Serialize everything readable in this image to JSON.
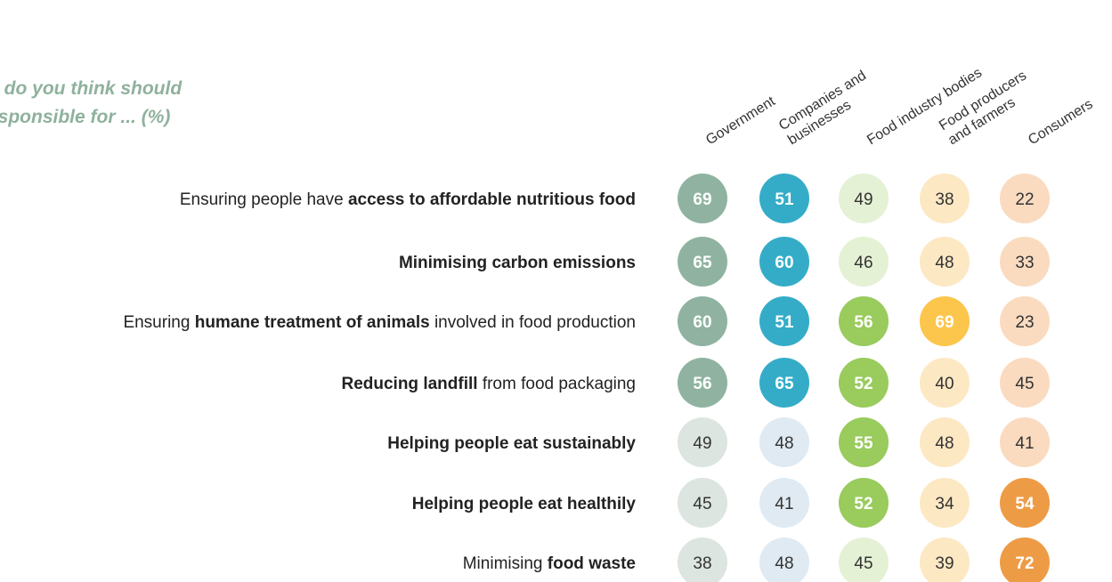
{
  "title": {
    "line1": "o do you think should",
    "line2": "esponsible for ... (%)"
  },
  "columns": [
    {
      "lines": [
        "Government"
      ]
    },
    {
      "lines": [
        "Companies and",
        "businesses"
      ]
    },
    {
      "lines": [
        "Food industry bodies"
      ]
    },
    {
      "lines": [
        "Food producers",
        "and farmers"
      ]
    },
    {
      "lines": [
        "Consumers"
      ]
    }
  ],
  "rows": [
    {
      "parts": [
        {
          "text": "Ensuring people have ",
          "bold": false
        },
        {
          "text": "access to affordable nutritious food",
          "bold": true
        }
      ]
    },
    {
      "parts": [
        {
          "text": "Minimising carbon emissions",
          "bold": true
        }
      ]
    },
    {
      "parts": [
        {
          "text": "Ensuring ",
          "bold": false
        },
        {
          "text": "humane treatment of animals",
          "bold": true
        },
        {
          "text": " involved in food production",
          "bold": false
        }
      ]
    },
    {
      "parts": [
        {
          "text": "Reducing landfill",
          "bold": true
        },
        {
          "text": " from food packaging",
          "bold": false
        }
      ]
    },
    {
      "parts": [
        {
          "text": "Helping people eat sustainably",
          "bold": true
        }
      ]
    },
    {
      "parts": [
        {
          "text": "Helping people eat healthily",
          "bold": true
        }
      ]
    },
    {
      "parts": [
        {
          "text": "Minimising ",
          "bold": false
        },
        {
          "text": "food waste",
          "bold": true
        }
      ]
    }
  ],
  "colors": {
    "column_strong": [
      "#8fb3a0",
      "#35acc7",
      "#99cb5d",
      "#fcc64c",
      "#ee9b46"
    ],
    "column_light": [
      "#dce5df",
      "#dfeaf2",
      "#e4f1d4",
      "#fde8c4",
      "#fadbc0"
    ],
    "text_on_strong": "#ffffff",
    "text_on_light": "#333333"
  },
  "chart_data": {
    "type": "table",
    "categories": [
      "Ensuring people have access to affordable nutritious food",
      "Minimising carbon emissions",
      "Ensuring humane treatment of animals involved in food production",
      "Reducing landfill from food packaging",
      "Helping people eat sustainably",
      "Helping people eat healthily",
      "Minimising food waste"
    ],
    "series": [
      {
        "name": "Government",
        "values": [
          69,
          65,
          60,
          56,
          49,
          45,
          38
        ],
        "highlighted": [
          true,
          true,
          true,
          true,
          false,
          false,
          false
        ]
      },
      {
        "name": "Companies and businesses",
        "values": [
          51,
          60,
          51,
          65,
          48,
          41,
          48
        ],
        "highlighted": [
          true,
          true,
          true,
          true,
          false,
          false,
          false
        ]
      },
      {
        "name": "Food industry bodies",
        "values": [
          49,
          46,
          56,
          52,
          55,
          52,
          45
        ],
        "highlighted": [
          false,
          false,
          true,
          true,
          true,
          true,
          false
        ]
      },
      {
        "name": "Food producers and farmers",
        "values": [
          38,
          48,
          69,
          40,
          48,
          34,
          39
        ],
        "highlighted": [
          false,
          false,
          true,
          false,
          false,
          false,
          false
        ]
      },
      {
        "name": "Consumers",
        "values": [
          22,
          33,
          23,
          45,
          41,
          54,
          72
        ],
        "highlighted": [
          false,
          false,
          false,
          false,
          false,
          true,
          true
        ]
      }
    ]
  }
}
